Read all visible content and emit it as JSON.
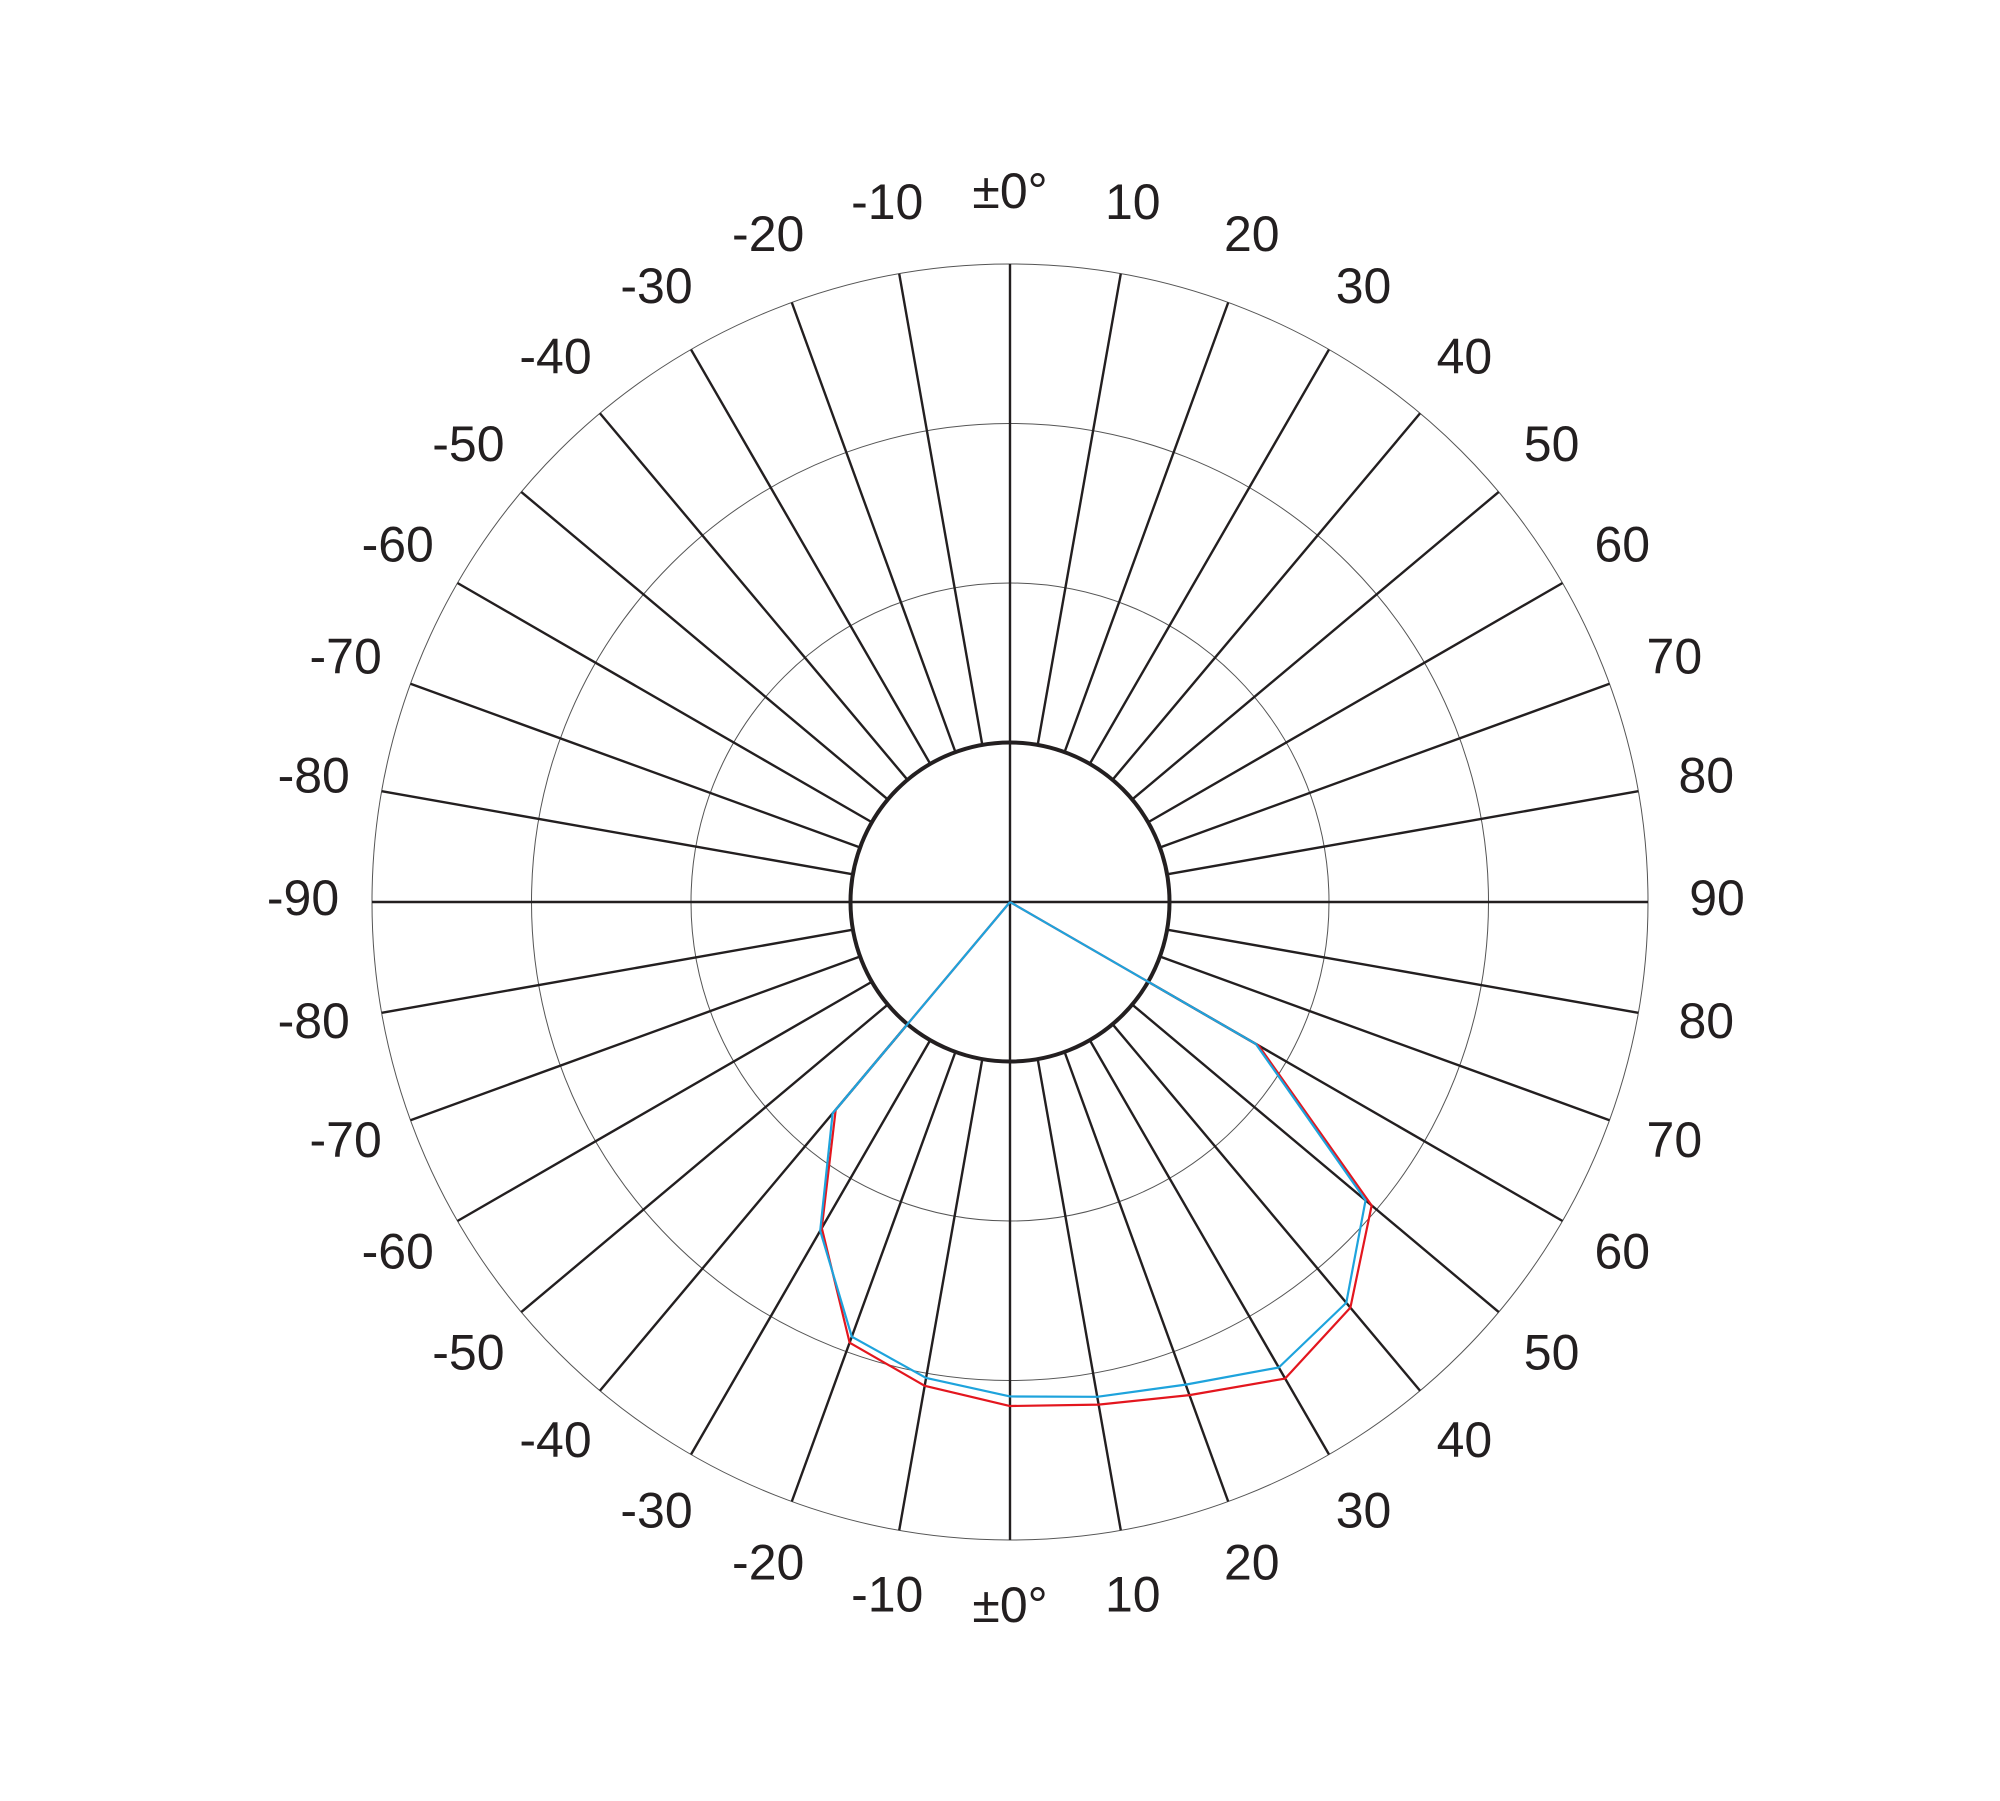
{
  "chart_data": {
    "type": "polar",
    "theta": [
      -90,
      -80,
      -70,
      -60,
      -50,
      -40,
      -30,
      -20,
      -10,
      0,
      10,
      20,
      30,
      40,
      50,
      60,
      70,
      80,
      90
    ],
    "series": [
      {
        "color": "#e3161e",
        "values": [
          0,
          0,
          0,
          0,
          0,
          1.7,
          2.36,
          2.94,
          3.08,
          3.16,
          3.2,
          3.29,
          3.45,
          3.32,
          2.96,
          1.8,
          0,
          0,
          0
        ]
      },
      {
        "color": "#1ea3dc",
        "values": [
          0,
          0,
          0,
          0,
          0,
          1.73,
          2.38,
          2.9,
          3.03,
          3.1,
          3.15,
          3.22,
          3.37,
          3.28,
          2.91,
          1.78,
          0,
          0,
          0
        ]
      }
    ],
    "rlim": [
      0,
      4
    ],
    "rticks": [
      1,
      2,
      3,
      4
    ],
    "thetaticks": [
      {
        "value": -170,
        "label": "-10"
      },
      {
        "value": -160,
        "label": "-20"
      },
      {
        "value": -150,
        "label": "-30"
      },
      {
        "value": -140,
        "label": "-40"
      },
      {
        "value": -130,
        "label": "-50"
      },
      {
        "value": -120,
        "label": "-60"
      },
      {
        "value": -110,
        "label": "-70"
      },
      {
        "value": -100,
        "label": "-80"
      },
      -90,
      -80,
      -70,
      -60,
      -50,
      -40,
      -30,
      -20,
      -10,
      {
        "value": 0,
        "label": "±0°"
      },
      10,
      20,
      30,
      40,
      50,
      60,
      70,
      80,
      90,
      {
        "value": 100,
        "label": "80"
      },
      {
        "value": 110,
        "label": "70"
      },
      {
        "value": 120,
        "label": "60"
      },
      {
        "value": 130,
        "label": "50"
      },
      {
        "value": 140,
        "label": "40"
      },
      {
        "value": 150,
        "label": "30"
      },
      {
        "value": 160,
        "label": "20"
      },
      {
        "value": 170,
        "label": "10"
      },
      {
        "value": 180,
        "label": "±0°"
      }
    ]
  }
}
